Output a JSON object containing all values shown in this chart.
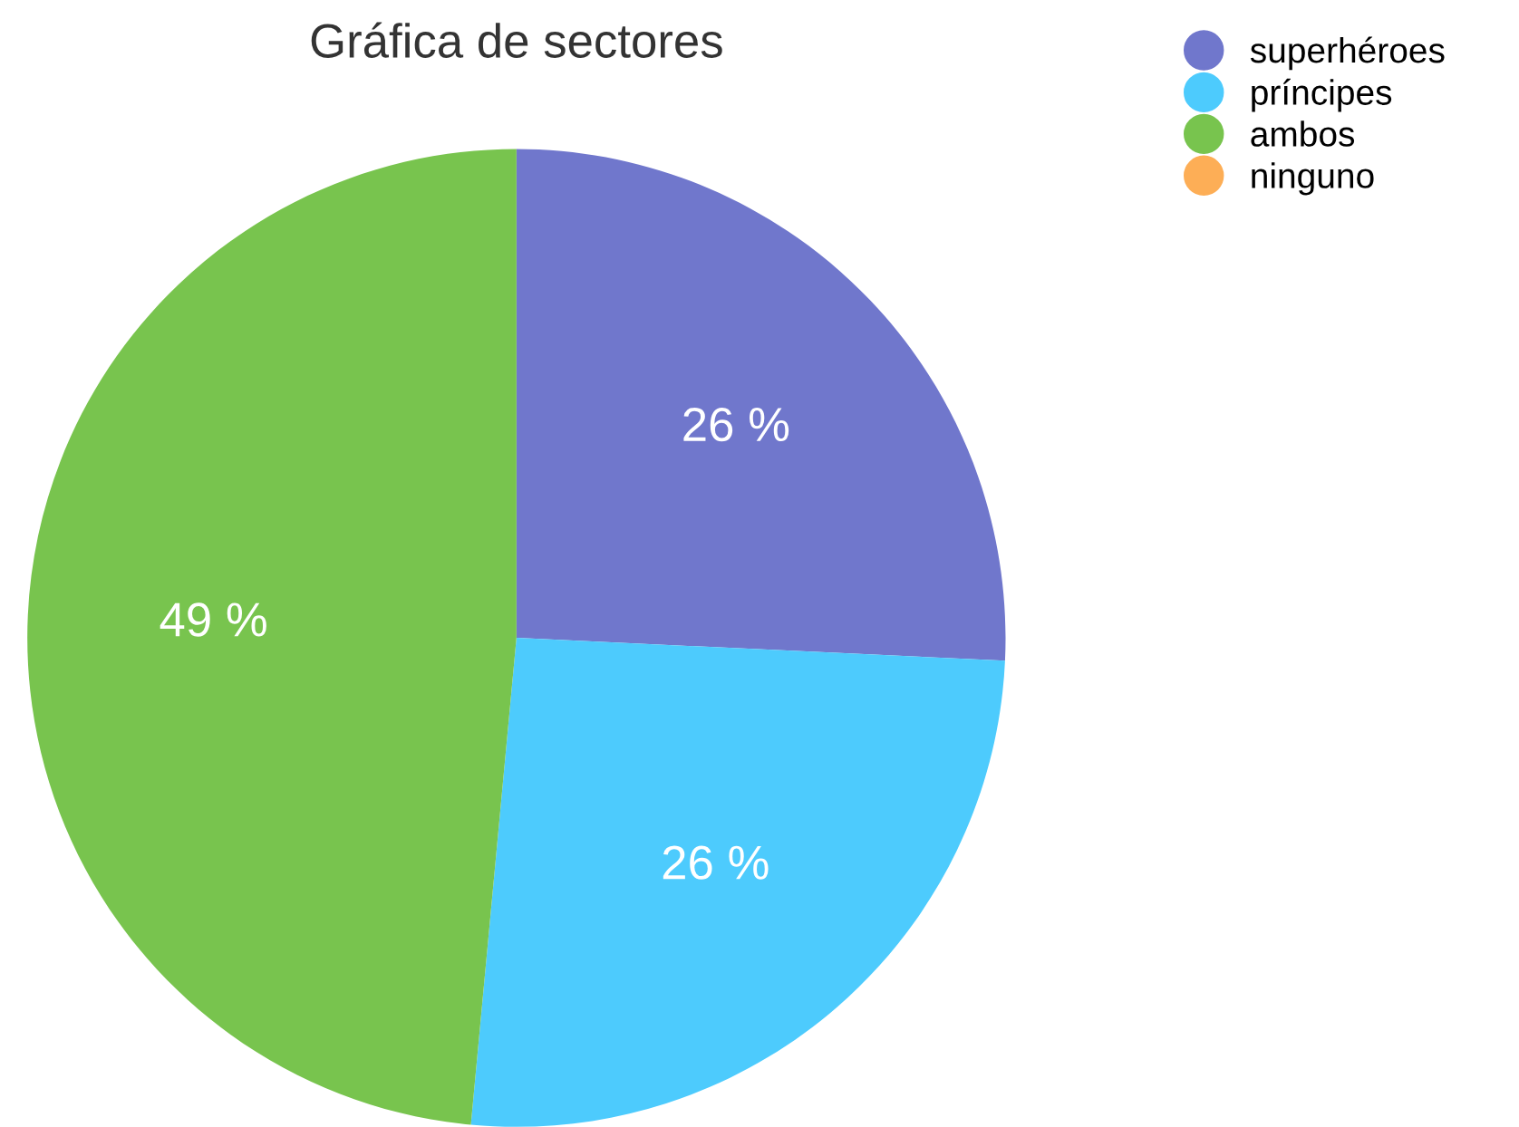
{
  "chart_data": {
    "type": "pie",
    "title": "Gráfica de sectores",
    "categories": [
      "superhéroes",
      "príncipes",
      "ambos",
      "ninguno"
    ],
    "values": [
      26,
      26,
      49,
      0
    ],
    "colors": [
      "#7077cc",
      "#4dcbfd",
      "#78c44e",
      "#fdae56"
    ],
    "value_labels": [
      "26 %",
      "26 %",
      "49 %",
      null
    ],
    "legend": "top right"
  }
}
